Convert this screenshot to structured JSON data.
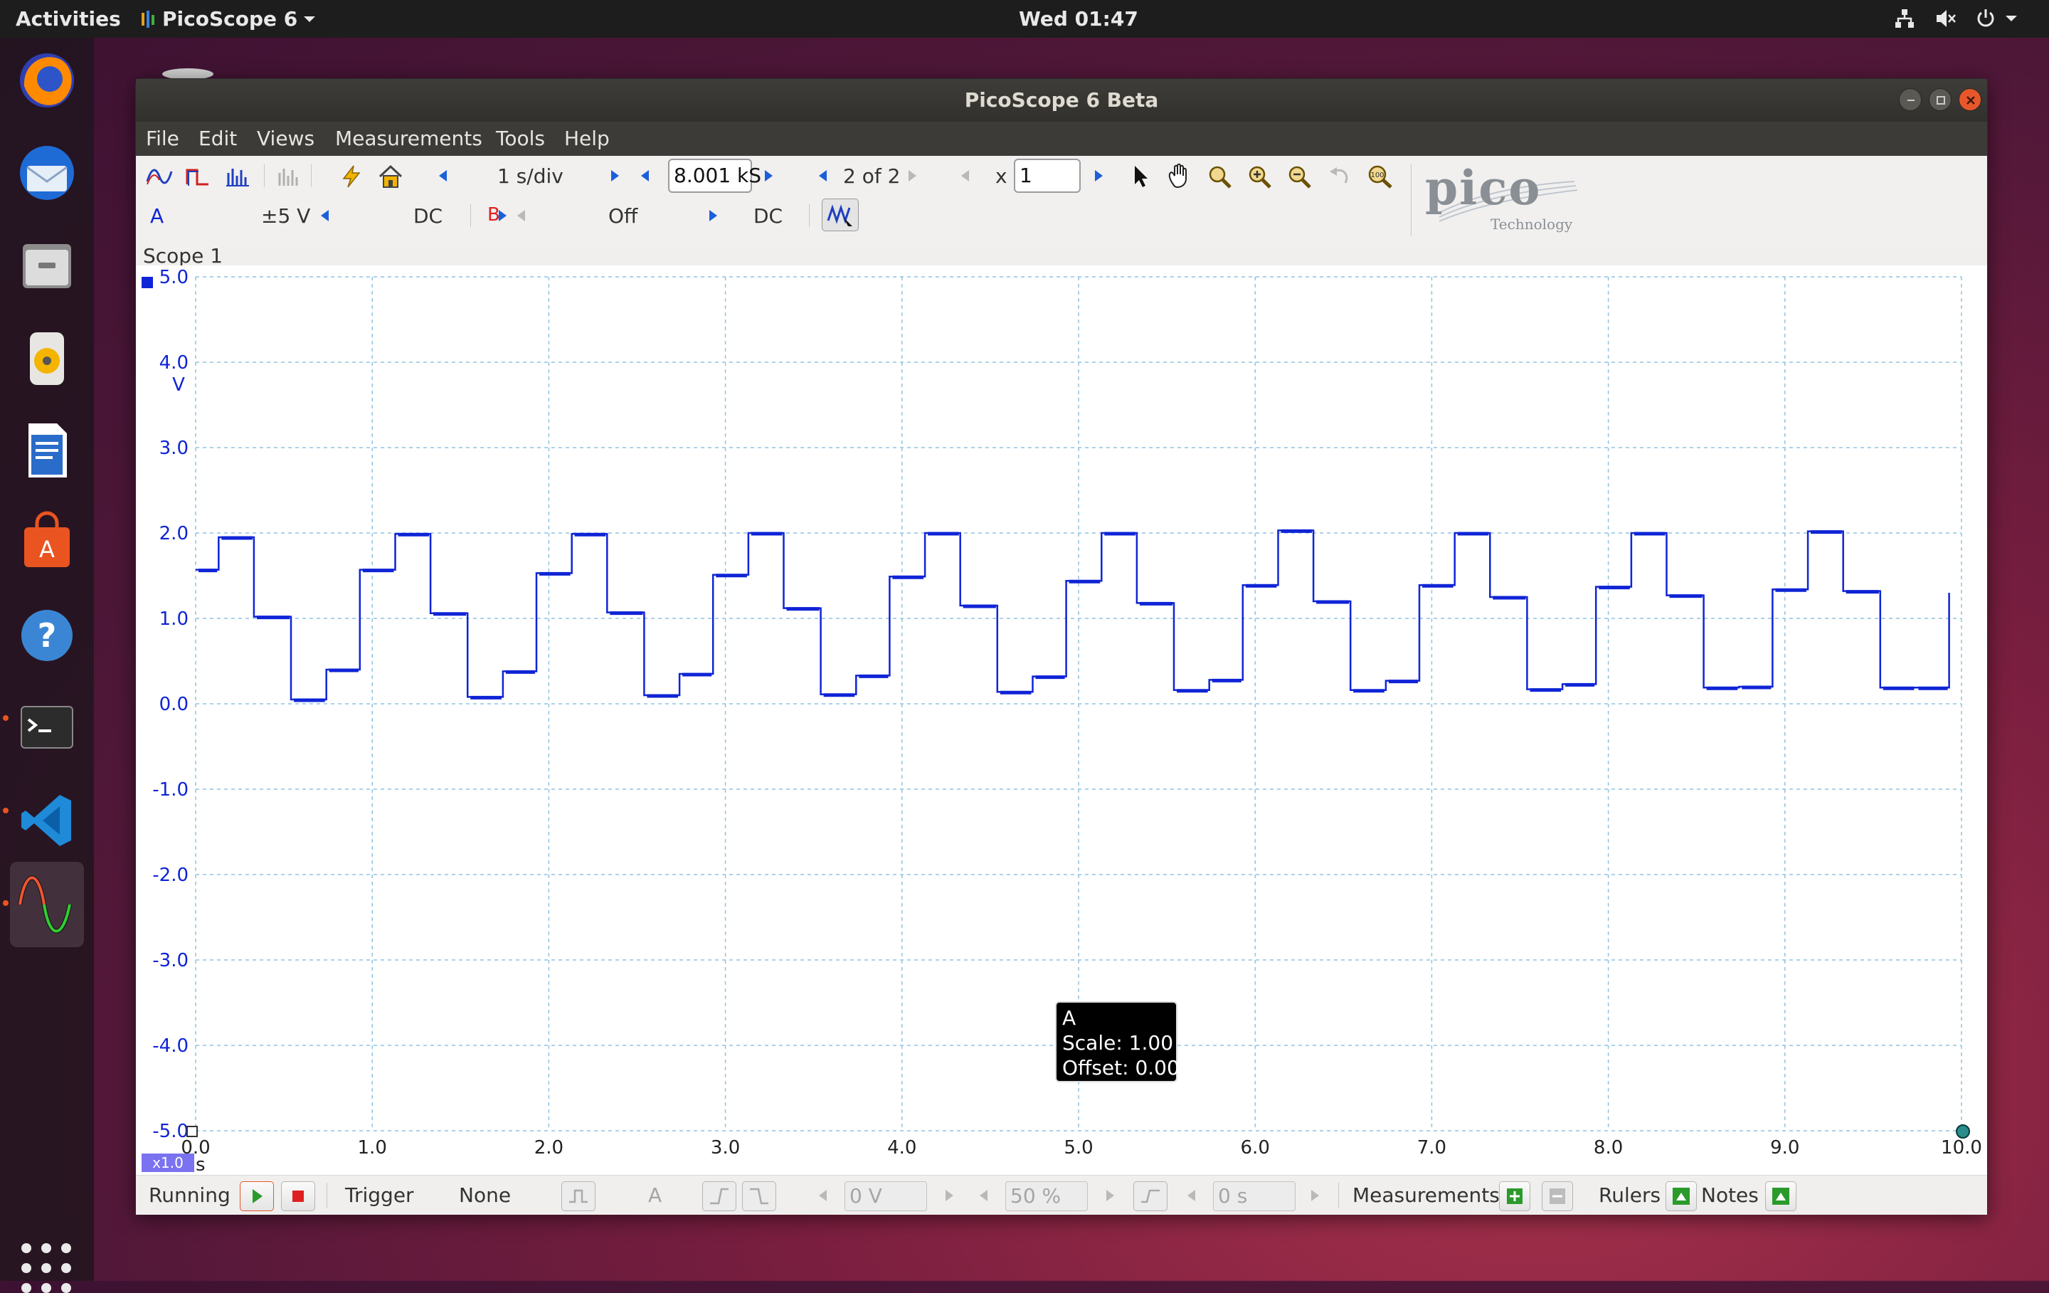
{
  "topbar": {
    "activities": "Activities",
    "app_menu": "PicoScope 6",
    "clock": "Wed 01:47",
    "tray_icons": [
      "network-icon",
      "volume-muted-icon",
      "power-icon"
    ]
  },
  "dock": {
    "items": [
      "firefox",
      "thunderbird",
      "files",
      "rhythmbox",
      "libreoffice-writer",
      "ubuntu-software",
      "help",
      "terminal",
      "vscode",
      "picoscope"
    ]
  },
  "window": {
    "title": "PicoScope 6 Beta"
  },
  "menubar": {
    "items": [
      "File",
      "Edit",
      "Views",
      "Measurements",
      "Tools",
      "Help"
    ]
  },
  "toolbar": {
    "timebase": "1 s/div",
    "samples": "8.001 kS",
    "buffer": "2 of 2",
    "zoom_x_label": "x",
    "zoom_value": "1",
    "logo_text": "pico",
    "logo_sub": "Technology"
  },
  "channels": {
    "a": {
      "label": "A",
      "range": "±5 V",
      "coupling": "DC",
      "color": "#0f24d6"
    },
    "b": {
      "label": "B",
      "range": "Off",
      "coupling": "DC",
      "color": "#e02020"
    }
  },
  "scope": {
    "tab": "Scope 1",
    "unit_v": "V",
    "unit_s": "s",
    "x_zoom_badge": "x1.0"
  },
  "tooltip": {
    "channel": "A",
    "scale": "Scale: 1.00",
    "offset": "Offset: 0.00"
  },
  "statusbar": {
    "running": "Running",
    "trigger_label": "Trigger",
    "trigger_mode": "None",
    "trigger_channel": "A",
    "threshold": "0 V",
    "pre_trigger": "50 %",
    "delay": "0 s",
    "measurements": "Measurements",
    "rulers": "Rulers",
    "notes": "Notes"
  },
  "chart_data": {
    "type": "line",
    "xlabel": "s",
    "ylabel": "V",
    "xlim": [
      0,
      10
    ],
    "ylim": [
      -5,
      5
    ],
    "x_ticks": [
      "0.0",
      "1.0",
      "2.0",
      "3.0",
      "4.0",
      "5.0",
      "6.0",
      "7.0",
      "8.0",
      "9.0",
      "10.0"
    ],
    "y_ticks": [
      "5.0",
      "4.0",
      "3.0",
      "2.0",
      "1.0",
      "0.0",
      "-1.0",
      "-2.0",
      "-3.0",
      "-4.0",
      "-5.0"
    ],
    "grid": true,
    "series": [
      {
        "name": "A",
        "color": "#0f24d6",
        "x": [
          0.0,
          0.13,
          0.13,
          0.33,
          0.33,
          0.54,
          0.54,
          0.74,
          0.74,
          0.93,
          0.93,
          1.13,
          1.13,
          1.33,
          1.33,
          1.54,
          1.54,
          1.74,
          1.74,
          1.93,
          1.93,
          2.13,
          2.13,
          2.33,
          2.33,
          2.54,
          2.54,
          2.74,
          2.74,
          2.93,
          2.93,
          3.13,
          3.13,
          3.33,
          3.33,
          3.54,
          3.54,
          3.74,
          3.74,
          3.93,
          3.93,
          4.13,
          4.13,
          4.33,
          4.33,
          4.54,
          4.54,
          4.74,
          4.74,
          4.93,
          4.93,
          5.13,
          5.13,
          5.33,
          5.33,
          5.54,
          5.54,
          5.74,
          5.74,
          5.93,
          5.93,
          6.13,
          6.13,
          6.33,
          6.33,
          6.54,
          6.54,
          6.74,
          6.74,
          6.93,
          6.93,
          7.13,
          7.13,
          7.33,
          7.33,
          7.54,
          7.54,
          7.74,
          7.74,
          7.93,
          7.93,
          8.13,
          8.13,
          8.33,
          8.33,
          8.54,
          8.54,
          8.74,
          8.74,
          8.93,
          8.93,
          9.13,
          9.13,
          9.33,
          9.33,
          9.54,
          9.54,
          9.74,
          9.74,
          9.93,
          9.93
        ],
        "y": [
          1.57,
          1.57,
          1.95,
          1.95,
          1.02,
          1.02,
          0.05,
          0.05,
          0.4,
          0.4,
          1.57,
          1.57,
          1.99,
          1.99,
          1.06,
          1.06,
          0.08,
          0.08,
          0.38,
          0.38,
          1.53,
          1.53,
          1.99,
          1.99,
          1.07,
          1.07,
          0.1,
          0.1,
          0.35,
          0.35,
          1.51,
          1.51,
          2.0,
          2.0,
          1.12,
          1.12,
          0.11,
          0.11,
          0.33,
          0.33,
          1.49,
          1.49,
          2.0,
          2.0,
          1.15,
          1.15,
          0.14,
          0.14,
          0.32,
          0.32,
          1.44,
          1.44,
          2.0,
          2.0,
          1.18,
          1.18,
          0.16,
          0.16,
          0.28,
          0.28,
          1.39,
          1.39,
          2.03,
          2.03,
          1.2,
          1.2,
          0.16,
          0.16,
          0.27,
          0.27,
          1.39,
          1.39,
          2.0,
          2.0,
          1.25,
          1.25,
          0.17,
          0.17,
          0.23,
          0.23,
          1.37,
          1.37,
          2.0,
          2.0,
          1.27,
          1.27,
          0.19,
          0.19,
          0.2,
          0.2,
          1.34,
          1.34,
          2.02,
          2.02,
          1.32,
          1.32,
          0.19,
          0.19,
          0.19,
          0.19,
          1.3
        ]
      }
    ]
  }
}
